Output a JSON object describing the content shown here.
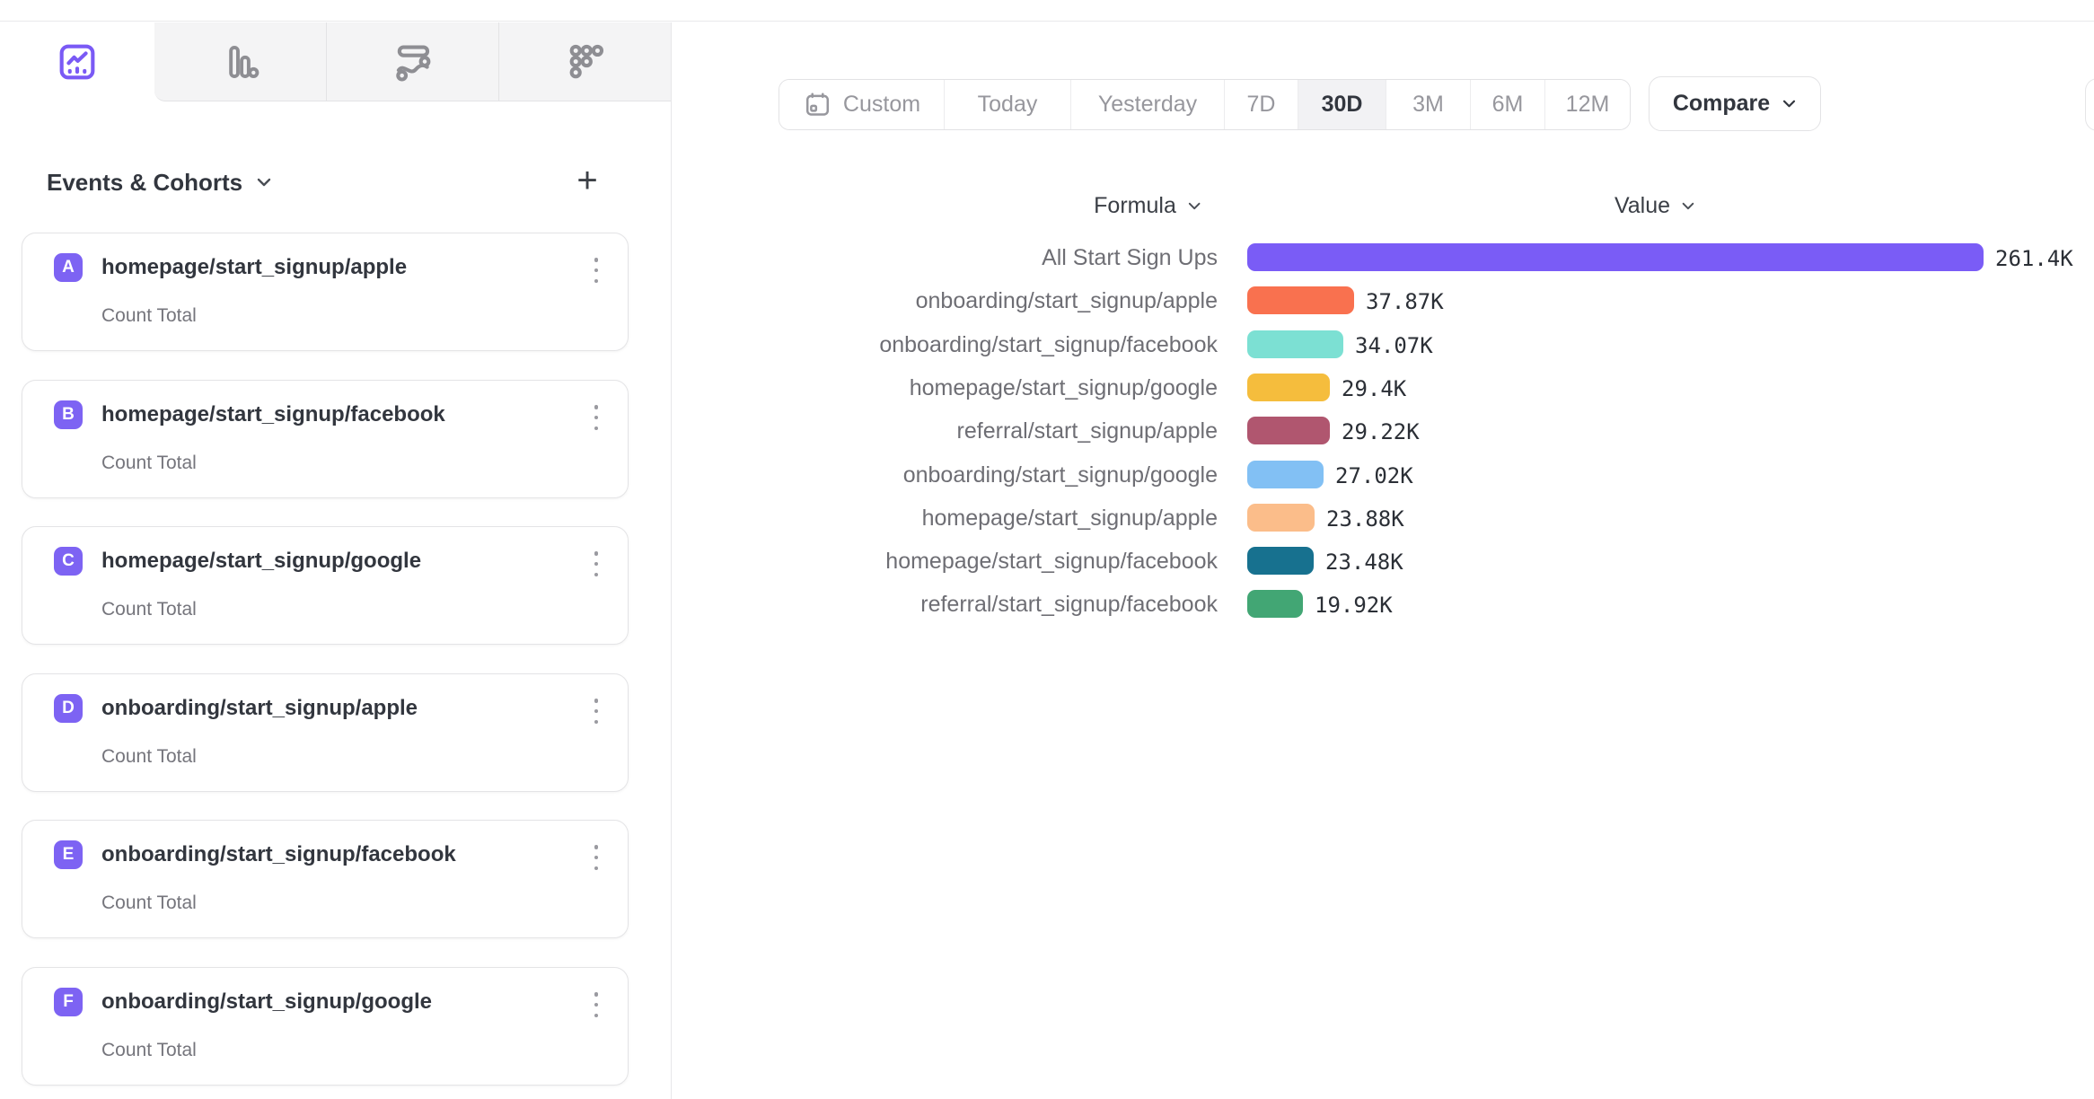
{
  "colors": {
    "accent_purple": "#7a5cf6",
    "badge_purple": "#7d63f3",
    "inactive_tab_bg": "#f4f4f5",
    "active_segment_bg": "#f2f2f4"
  },
  "tabs": [
    {
      "icon": "insights-line-chart-icon",
      "active": true
    },
    {
      "icon": "bar-chart-icon",
      "active": false
    },
    {
      "icon": "flows-icon",
      "active": false
    },
    {
      "icon": "retention-icon",
      "active": false
    }
  ],
  "sidebar": {
    "header": {
      "title": "Events & Cohorts",
      "add_label": "+"
    },
    "cards": [
      {
        "letter": "A",
        "title": "homepage/start_signup/apple",
        "subtitle": "Count Total"
      },
      {
        "letter": "B",
        "title": "homepage/start_signup/facebook",
        "subtitle": "Count Total"
      },
      {
        "letter": "C",
        "title": "homepage/start_signup/google",
        "subtitle": "Count Total"
      },
      {
        "letter": "D",
        "title": "onboarding/start_signup/apple",
        "subtitle": "Count Total"
      },
      {
        "letter": "E",
        "title": "onboarding/start_signup/facebook",
        "subtitle": "Count Total"
      },
      {
        "letter": "F",
        "title": "onboarding/start_signup/google",
        "subtitle": "Count Total"
      }
    ]
  },
  "toolbar": {
    "date_ranges": [
      {
        "label": "Custom",
        "icon": "calendar-icon",
        "active": false
      },
      {
        "label": "Today",
        "active": false
      },
      {
        "label": "Yesterday",
        "active": false
      },
      {
        "label": "7D",
        "active": false
      },
      {
        "label": "30D",
        "active": true
      },
      {
        "label": "3M",
        "active": false
      },
      {
        "label": "6M",
        "active": false
      },
      {
        "label": "12M",
        "active": false
      }
    ],
    "compare_label": "Compare"
  },
  "chart_data": {
    "type": "bar",
    "orientation": "horizontal",
    "headers": {
      "formula": "Formula",
      "value": "Value"
    },
    "max_value": 261400,
    "rows": [
      {
        "label": "All Start Sign Ups",
        "value": 261400,
        "value_label": "261.4K",
        "color": "#7a5cf6"
      },
      {
        "label": "onboarding/start_signup/apple",
        "value": 37870,
        "value_label": "37.87K",
        "color": "#f9714f"
      },
      {
        "label": "onboarding/start_signup/facebook",
        "value": 34070,
        "value_label": "34.07K",
        "color": "#7ce0d3"
      },
      {
        "label": "homepage/start_signup/google",
        "value": 29400,
        "value_label": "29.4K",
        "color": "#f5bd3d"
      },
      {
        "label": "referral/start_signup/apple",
        "value": 29220,
        "value_label": "29.22K",
        "color": "#b0566f"
      },
      {
        "label": "onboarding/start_signup/google",
        "value": 27020,
        "value_label": "27.02K",
        "color": "#82c0f4"
      },
      {
        "label": "homepage/start_signup/apple",
        "value": 23880,
        "value_label": "23.88K",
        "color": "#fbbd8a"
      },
      {
        "label": "homepage/start_signup/facebook",
        "value": 23480,
        "value_label": "23.48K",
        "color": "#17718f"
      },
      {
        "label": "referral/start_signup/facebook",
        "value": 19920,
        "value_label": "19.92K",
        "color": "#42a674"
      }
    ]
  }
}
